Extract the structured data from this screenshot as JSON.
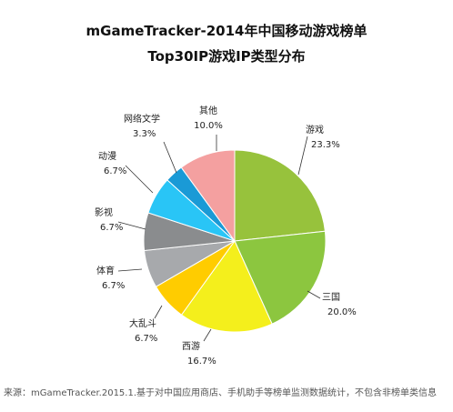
{
  "chart_data": {
    "type": "pie",
    "title": "mGameTracker-2014年中国移动游戏榜单",
    "subtitle": "Top30IP游戏IP类型分布",
    "slices": [
      {
        "label": "游戏",
        "value": 23.3,
        "display": "23.3%",
        "color": "#97c23c"
      },
      {
        "label": "三国",
        "value": 20.0,
        "display": "20.0%",
        "color": "#8cc63f"
      },
      {
        "label": "西游",
        "value": 16.7,
        "display": "16.7%",
        "color": "#f4ef1c"
      },
      {
        "label": "大乱斗",
        "value": 6.7,
        "display": "6.7%",
        "color": "#ffcc00"
      },
      {
        "label": "体育",
        "value": 6.7,
        "display": "6.7%",
        "color": "#a7a9ac"
      },
      {
        "label": "影视",
        "value": 6.7,
        "display": "6.7%",
        "color": "#8a8c8e"
      },
      {
        "label": "动漫",
        "value": 6.7,
        "display": "6.7%",
        "color": "#29c5f6"
      },
      {
        "label": "网络文学",
        "value": 3.3,
        "display": "3.3%",
        "color": "#1a9ad6"
      },
      {
        "label": "其他",
        "value": 10.0,
        "display": "10.0%",
        "color": "#f4a0a0"
      }
    ]
  },
  "footnote": "来源：mGameTracker.2015.1.基于对中国应用商店、手机助手等榜单监测数据统计，不包含非榜单类信息"
}
